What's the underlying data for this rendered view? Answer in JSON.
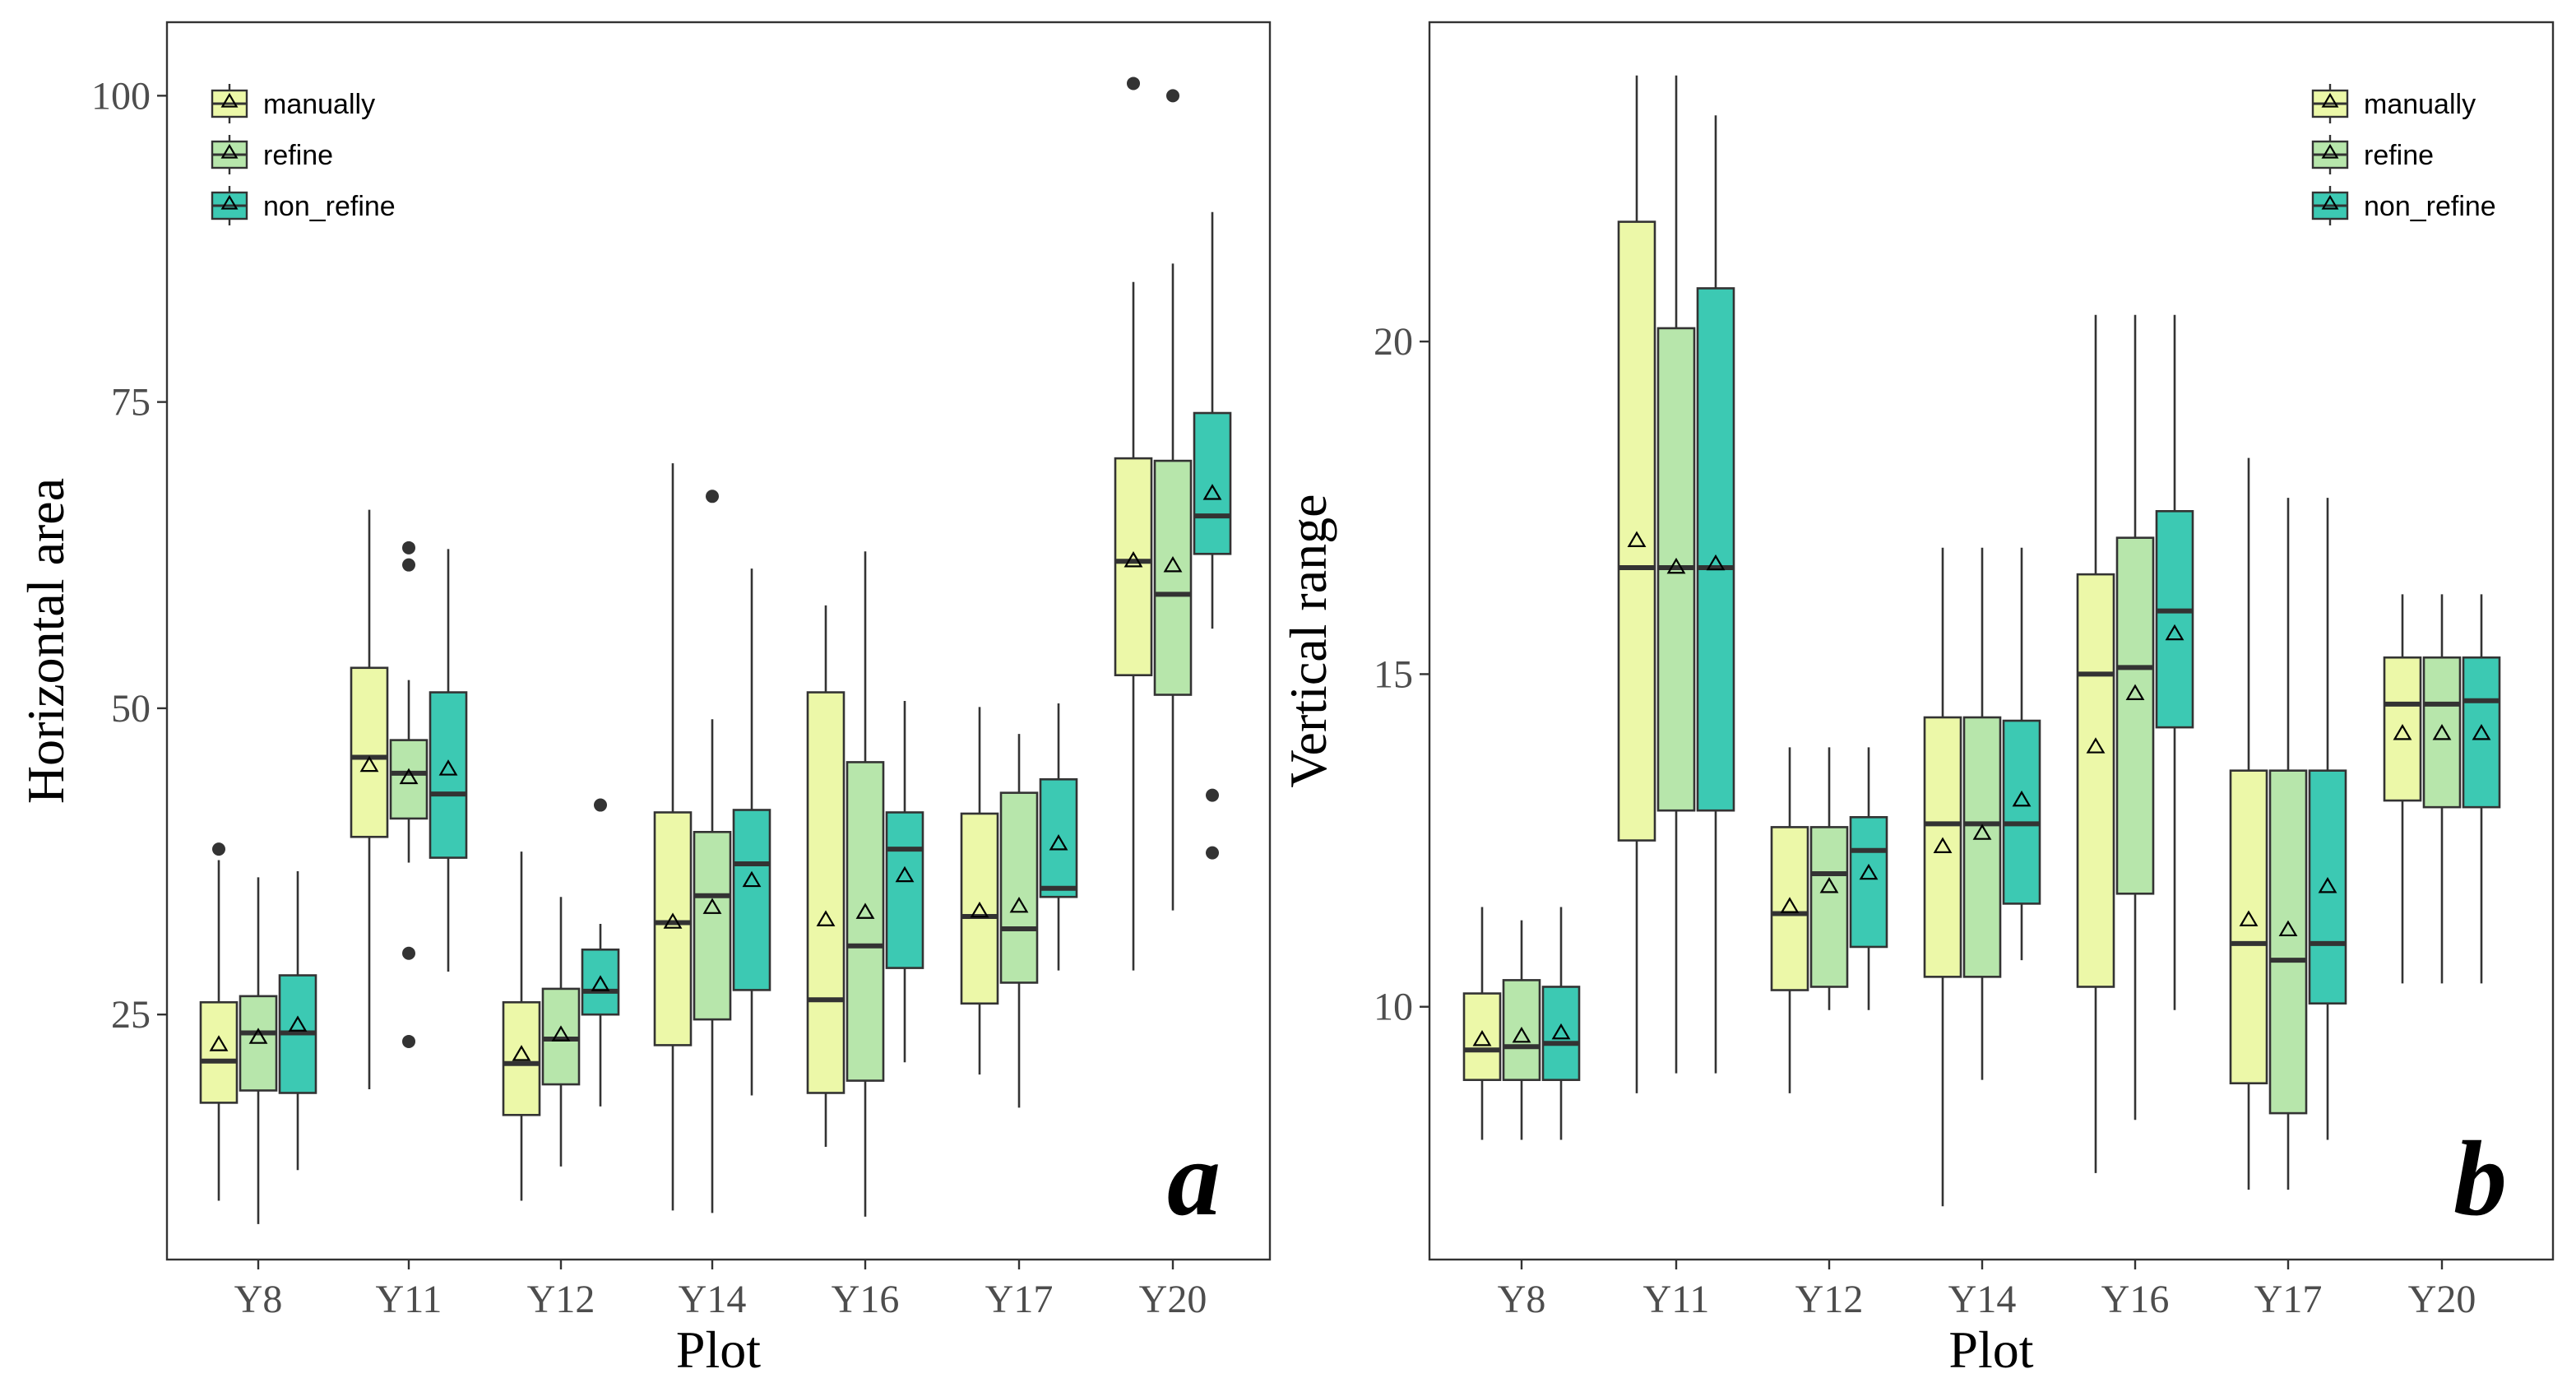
{
  "colors": {
    "manually": "#ecf8a8",
    "refine": "#b7e6ab",
    "non_refine": "#3cc9b3",
    "outline": "#333333",
    "frame": "#333333"
  },
  "legend": {
    "items": [
      {
        "key": "manually",
        "label": "manually"
      },
      {
        "key": "refine",
        "label": "refine"
      },
      {
        "key": "non_refine",
        "label": "non_refine"
      }
    ]
  },
  "chart_data": [
    {
      "type": "box",
      "panel_label": "a",
      "xlabel": "Plot",
      "ylabel": "Horizontal area",
      "ylim": [
        5,
        106
      ],
      "yticks": [
        25,
        50,
        75,
        100
      ],
      "legend_position": "top-left",
      "categories": [
        "Y8",
        "Y11",
        "Y12",
        "Y14",
        "Y16",
        "Y17",
        "Y20"
      ],
      "series": [
        {
          "name": "manually",
          "boxes": [
            {
              "whisker_low": 9.8,
              "q1": 17.8,
              "median": 21.2,
              "q3": 26.0,
              "whisker_high": 37.6,
              "mean": 22.5,
              "outliers": [
                38.5
              ]
            },
            {
              "whisker_low": 18.9,
              "q1": 39.5,
              "median": 46.0,
              "q3": 53.3,
              "whisker_high": 66.2,
              "mean": 45.3,
              "outliers": []
            },
            {
              "whisker_low": 9.8,
              "q1": 16.8,
              "median": 21.0,
              "q3": 26.0,
              "whisker_high": 38.3,
              "mean": 21.7,
              "outliers": []
            },
            {
              "whisker_low": 9.0,
              "q1": 22.5,
              "median": 32.5,
              "q3": 41.5,
              "whisker_high": 70.0,
              "mean": 32.5,
              "outliers": []
            },
            {
              "whisker_low": 14.2,
              "q1": 18.6,
              "median": 26.2,
              "q3": 51.3,
              "whisker_high": 58.4,
              "mean": 32.7,
              "outliers": []
            },
            {
              "whisker_low": 20.1,
              "q1": 25.9,
              "median": 33.0,
              "q3": 41.4,
              "whisker_high": 50.1,
              "mean": 33.4,
              "outliers": []
            },
            {
              "whisker_low": 28.6,
              "q1": 52.7,
              "median": 62.0,
              "q3": 70.4,
              "whisker_high": 84.8,
              "mean": 62.0,
              "outliers": [
                101.0
              ]
            }
          ]
        },
        {
          "name": "refine",
          "boxes": [
            {
              "whisker_low": 7.9,
              "q1": 18.8,
              "median": 23.5,
              "q3": 26.5,
              "whisker_high": 36.2,
              "mean": 23.1,
              "outliers": []
            },
            {
              "whisker_low": 37.4,
              "q1": 41.0,
              "median": 44.7,
              "q3": 47.4,
              "whisker_high": 52.3,
              "mean": 44.3,
              "outliers": [
                63.1,
                61.7,
                30.0,
                22.8
              ]
            },
            {
              "whisker_low": 12.6,
              "q1": 19.3,
              "median": 23.0,
              "q3": 27.1,
              "whisker_high": 34.6,
              "mean": 23.3,
              "outliers": []
            },
            {
              "whisker_low": 8.8,
              "q1": 24.6,
              "median": 34.7,
              "q3": 39.9,
              "whisker_high": 49.1,
              "mean": 33.7,
              "outliers": [
                67.3
              ]
            },
            {
              "whisker_low": 8.5,
              "q1": 19.6,
              "median": 30.6,
              "q3": 45.6,
              "whisker_high": 62.8,
              "mean": 33.3,
              "outliers": []
            },
            {
              "whisker_low": 17.4,
              "q1": 27.6,
              "median": 32.0,
              "q3": 43.1,
              "whisker_high": 47.9,
              "mean": 33.8,
              "outliers": []
            },
            {
              "whisker_low": 33.5,
              "q1": 51.1,
              "median": 59.3,
              "q3": 70.2,
              "whisker_high": 86.3,
              "mean": 61.6,
              "outliers": [
                100.0
              ]
            }
          ]
        },
        {
          "name": "non_refine",
          "boxes": [
            {
              "whisker_low": 12.3,
              "q1": 18.6,
              "median": 23.5,
              "q3": 28.2,
              "whisker_high": 36.7,
              "mean": 24.1,
              "outliers": []
            },
            {
              "whisker_low": 28.5,
              "q1": 37.8,
              "median": 43.0,
              "q3": 51.3,
              "whisker_high": 63.0,
              "mean": 45.0,
              "outliers": []
            },
            {
              "whisker_low": 17.5,
              "q1": 25.0,
              "median": 26.9,
              "q3": 30.3,
              "whisker_high": 32.4,
              "mean": 27.4,
              "outliers": [
                42.1
              ]
            },
            {
              "whisker_low": 18.4,
              "q1": 27.0,
              "median": 37.3,
              "q3": 41.7,
              "whisker_high": 61.4,
              "mean": 35.9,
              "outliers": []
            },
            {
              "whisker_low": 21.1,
              "q1": 28.8,
              "median": 38.5,
              "q3": 41.5,
              "whisker_high": 50.6,
              "mean": 36.3,
              "outliers": []
            },
            {
              "whisker_low": 28.6,
              "q1": 34.6,
              "median": 35.3,
              "q3": 44.2,
              "whisker_high": 50.4,
              "mean": 38.9,
              "outliers": []
            },
            {
              "whisker_low": 56.5,
              "q1": 62.6,
              "median": 65.7,
              "q3": 74.1,
              "whisker_high": 90.5,
              "mean": 67.5,
              "outliers": [
                42.9,
                38.2
              ]
            }
          ]
        }
      ]
    },
    {
      "type": "box",
      "panel_label": "b",
      "xlabel": "Plot",
      "ylabel": "Vertical range",
      "ylim": [
        6.2,
        24.8
      ],
      "yticks": [
        10,
        15,
        20
      ],
      "legend_position": "top-right",
      "categories": [
        "Y8",
        "Y11",
        "Y12",
        "Y14",
        "Y16",
        "Y17",
        "Y20"
      ],
      "series": [
        {
          "name": "manually",
          "boxes": [
            {
              "whisker_low": 8.0,
              "q1": 8.9,
              "median": 9.35,
              "q3": 10.2,
              "whisker_high": 11.5,
              "mean": 9.5,
              "outliers": []
            },
            {
              "whisker_low": 8.7,
              "q1": 12.5,
              "median": 16.6,
              "q3": 21.8,
              "whisker_high": 24.0,
              "mean": 17.0,
              "outliers": []
            },
            {
              "whisker_low": 8.7,
              "q1": 10.25,
              "median": 11.4,
              "q3": 12.7,
              "whisker_high": 13.9,
              "mean": 11.5,
              "outliers": []
            },
            {
              "whisker_low": 7.0,
              "q1": 10.45,
              "median": 12.75,
              "q3": 14.35,
              "whisker_high": 16.9,
              "mean": 12.4,
              "outliers": []
            },
            {
              "whisker_low": 7.5,
              "q1": 10.3,
              "median": 15.0,
              "q3": 16.5,
              "whisker_high": 20.4,
              "mean": 13.9,
              "outliers": []
            },
            {
              "whisker_low": 7.25,
              "q1": 8.85,
              "median": 10.95,
              "q3": 13.55,
              "whisker_high": 18.25,
              "mean": 11.3,
              "outliers": []
            },
            {
              "whisker_low": 10.35,
              "q1": 13.1,
              "median": 14.55,
              "q3": 15.25,
              "whisker_high": 16.2,
              "mean": 14.1,
              "outliers": []
            }
          ]
        },
        {
          "name": "refine",
          "boxes": [
            {
              "whisker_low": 8.0,
              "q1": 8.9,
              "median": 9.4,
              "q3": 10.4,
              "whisker_high": 11.3,
              "mean": 9.55,
              "outliers": []
            },
            {
              "whisker_low": 9.0,
              "q1": 12.95,
              "median": 16.6,
              "q3": 20.2,
              "whisker_high": 24.0,
              "mean": 16.6,
              "outliers": []
            },
            {
              "whisker_low": 9.95,
              "q1": 10.3,
              "median": 12.0,
              "q3": 12.7,
              "whisker_high": 13.9,
              "mean": 11.8,
              "outliers": []
            },
            {
              "whisker_low": 8.9,
              "q1": 10.45,
              "median": 12.75,
              "q3": 14.35,
              "whisker_high": 16.9,
              "mean": 12.6,
              "outliers": []
            },
            {
              "whisker_low": 8.3,
              "q1": 11.7,
              "median": 15.1,
              "q3": 17.05,
              "whisker_high": 20.4,
              "mean": 14.7,
              "outliers": []
            },
            {
              "whisker_low": 7.25,
              "q1": 8.4,
              "median": 10.7,
              "q3": 13.55,
              "whisker_high": 17.65,
              "mean": 11.15,
              "outliers": []
            },
            {
              "whisker_low": 10.35,
              "q1": 13.0,
              "median": 14.55,
              "q3": 15.25,
              "whisker_high": 16.2,
              "mean": 14.1,
              "outliers": []
            }
          ]
        },
        {
          "name": "non_refine",
          "boxes": [
            {
              "whisker_low": 8.0,
              "q1": 8.9,
              "median": 9.45,
              "q3": 10.3,
              "whisker_high": 11.5,
              "mean": 9.6,
              "outliers": []
            },
            {
              "whisker_low": 9.0,
              "q1": 12.95,
              "median": 16.6,
              "q3": 20.8,
              "whisker_high": 23.4,
              "mean": 16.65,
              "outliers": []
            },
            {
              "whisker_low": 9.95,
              "q1": 10.9,
              "median": 12.35,
              "q3": 12.85,
              "whisker_high": 13.9,
              "mean": 12.0,
              "outliers": []
            },
            {
              "whisker_low": 10.7,
              "q1": 11.55,
              "median": 12.75,
              "q3": 14.3,
              "whisker_high": 16.9,
              "mean": 13.1,
              "outliers": []
            },
            {
              "whisker_low": 9.95,
              "q1": 14.2,
              "median": 15.95,
              "q3": 17.45,
              "whisker_high": 20.4,
              "mean": 15.6,
              "outliers": []
            },
            {
              "whisker_low": 8.0,
              "q1": 10.05,
              "median": 10.95,
              "q3": 13.55,
              "whisker_high": 17.65,
              "mean": 11.8,
              "outliers": []
            },
            {
              "whisker_low": 10.35,
              "q1": 13.0,
              "median": 14.6,
              "q3": 15.25,
              "whisker_high": 16.2,
              "mean": 14.1,
              "outliers": []
            }
          ]
        }
      ]
    }
  ]
}
